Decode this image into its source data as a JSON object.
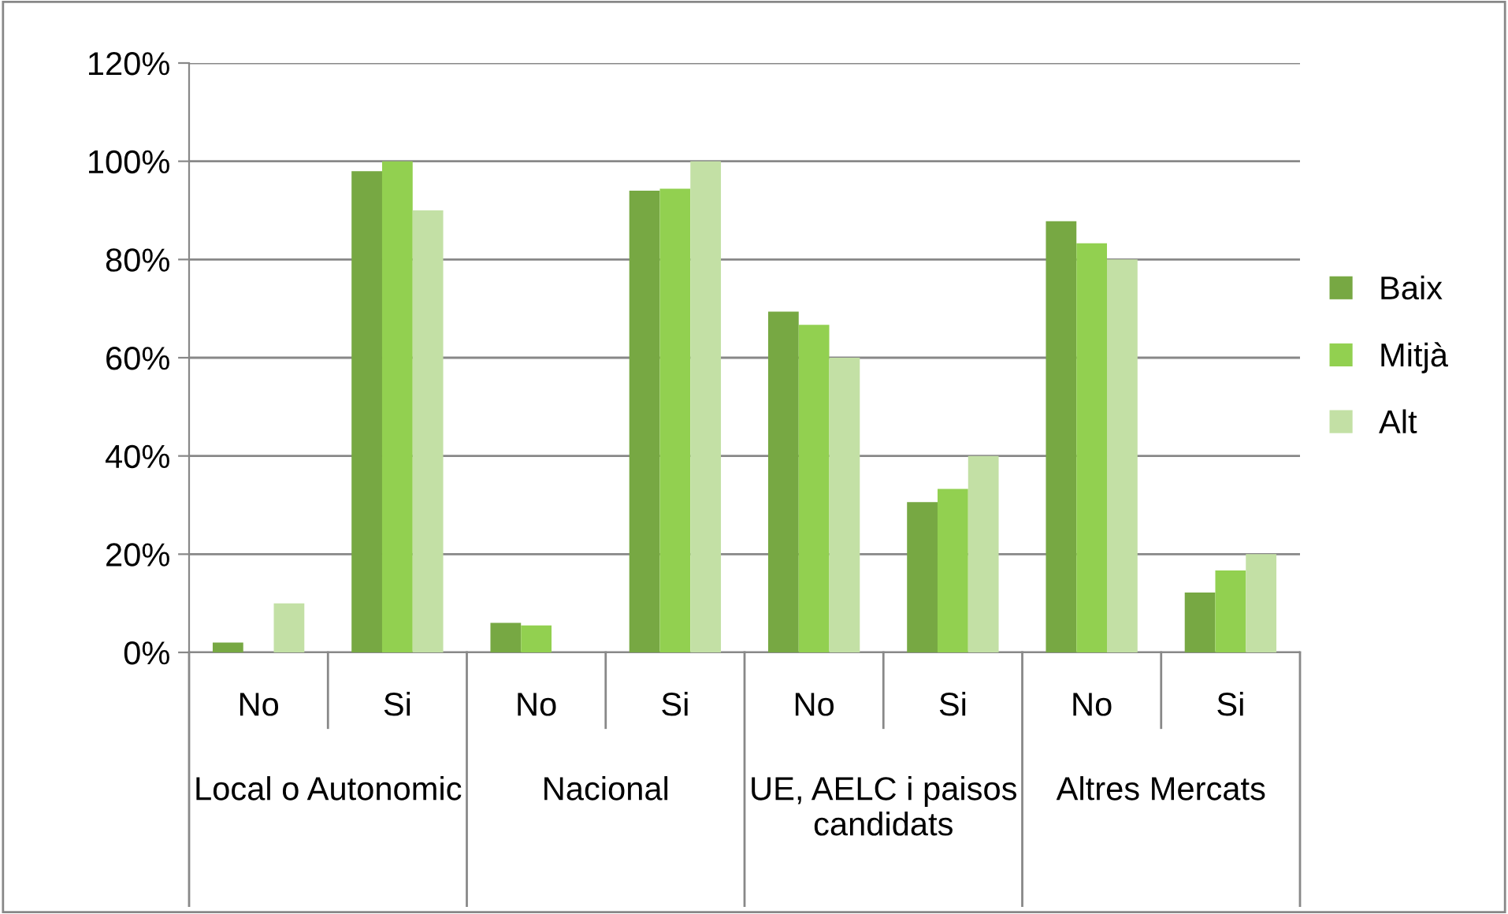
{
  "chart_data": {
    "type": "bar",
    "categories": [
      "No",
      "Si",
      "No",
      "Si",
      "No",
      "Si",
      "No",
      "Si"
    ],
    "annotations": [
      "Local o Autonomic",
      "Nacional",
      "UE, AELC i paisos candidats",
      "Altres Mercats"
    ],
    "series": [
      {
        "name": "Baix",
        "color": "#77a843",
        "values": [
          2,
          98,
          6,
          94,
          69.4,
          30.6,
          87.8,
          12.2
        ]
      },
      {
        "name": "Mitjà",
        "color": "#92d050",
        "values": [
          0,
          100,
          5.5,
          94.4,
          66.7,
          33.3,
          83.3,
          16.7
        ]
      },
      {
        "name": "Alt",
        "color": "#c3e0a5",
        "values": [
          10,
          90,
          0,
          100,
          60,
          40,
          80,
          20
        ]
      }
    ],
    "ylim": [
      0,
      120
    ],
    "yticks": [
      {
        "value": 0,
        "label": "0%"
      },
      {
        "value": 20,
        "label": "20%"
      },
      {
        "value": 40,
        "label": "40%"
      },
      {
        "value": 60,
        "label": "60%"
      },
      {
        "value": 80,
        "label": "80%"
      },
      {
        "value": 100,
        "label": "100%"
      },
      {
        "value": 120,
        "label": "120%"
      }
    ],
    "grid": "y",
    "legend": "right"
  }
}
